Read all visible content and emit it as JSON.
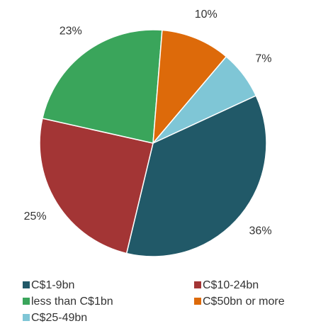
{
  "chart_data": {
    "type": "pie",
    "categories": [
      "C$1-9bn",
      "C$10-24bn",
      "less than C$1bn",
      "C$50bn or more",
      "C$25-49bn"
    ],
    "values": [
      36,
      25,
      23,
      10,
      7
    ],
    "value_labels": [
      "36%",
      "25%",
      "23%",
      "10%",
      "7%"
    ],
    "colors": [
      "#215968",
      "#a33535",
      "#3aa55b",
      "#dd6a0a",
      "#7fc6d6"
    ],
    "legend": "bottom"
  }
}
